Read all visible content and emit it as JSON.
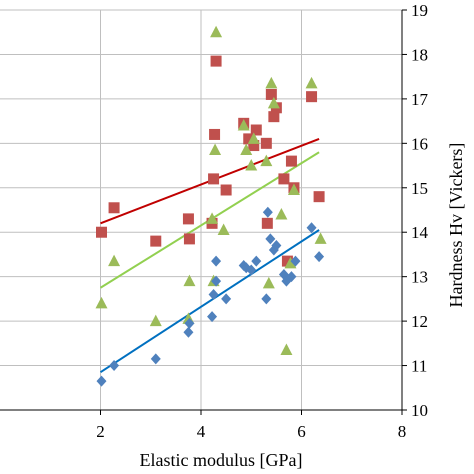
{
  "chart_data": {
    "type": "scatter",
    "xlabel": "Elastic modulus [GPa]",
    "ylabel": "Hardness Hv  [Vickers]",
    "xlim": [
      0,
      8
    ],
    "ylim": [
      10,
      19
    ],
    "x_ticks": [
      "2",
      "4",
      "6",
      "8"
    ],
    "y_ticks": [
      "10",
      "11",
      "12",
      "13",
      "14",
      "15",
      "16",
      "17",
      "18",
      "19"
    ],
    "y_axis_position": "right",
    "grid": true,
    "series": [
      {
        "marker": "square",
        "color": "#c0504d",
        "trend_color": "#c00000",
        "trend": [
          [
            2.0,
            14.2
          ],
          [
            6.35,
            16.1
          ]
        ],
        "points": [
          [
            2.02,
            14.0
          ],
          [
            2.27,
            14.55
          ],
          [
            3.1,
            13.8
          ],
          [
            3.75,
            14.3
          ],
          [
            3.77,
            13.85
          ],
          [
            4.22,
            14.2
          ],
          [
            4.25,
            15.2
          ],
          [
            4.27,
            16.2
          ],
          [
            4.3,
            17.85
          ],
          [
            4.5,
            14.95
          ],
          [
            4.85,
            16.45
          ],
          [
            4.95,
            16.1
          ],
          [
            5.05,
            15.95
          ],
          [
            5.1,
            16.3
          ],
          [
            5.3,
            16.0
          ],
          [
            5.32,
            14.2
          ],
          [
            5.4,
            17.1
          ],
          [
            5.45,
            16.6
          ],
          [
            5.5,
            16.8
          ],
          [
            5.65,
            15.2
          ],
          [
            5.72,
            13.35
          ],
          [
            5.8,
            15.6
          ],
          [
            5.85,
            15.0
          ],
          [
            6.2,
            17.05
          ],
          [
            6.35,
            14.8
          ]
        ]
      },
      {
        "marker": "triangle",
        "color": "#9bbb59",
        "trend_color": "#92d050",
        "trend": [
          [
            2.0,
            12.75
          ],
          [
            6.35,
            15.8
          ]
        ],
        "points": [
          [
            2.02,
            12.4
          ],
          [
            2.27,
            13.35
          ],
          [
            3.1,
            12.0
          ],
          [
            3.75,
            12.05
          ],
          [
            3.77,
            12.9
          ],
          [
            4.22,
            14.3
          ],
          [
            4.25,
            12.9
          ],
          [
            4.28,
            15.85
          ],
          [
            4.3,
            18.5
          ],
          [
            4.45,
            14.05
          ],
          [
            4.85,
            16.4
          ],
          [
            4.9,
            15.85
          ],
          [
            5.0,
            15.5
          ],
          [
            5.05,
            16.1
          ],
          [
            5.3,
            15.6
          ],
          [
            5.35,
            12.85
          ],
          [
            5.4,
            17.35
          ],
          [
            5.45,
            16.9
          ],
          [
            5.6,
            14.4
          ],
          [
            5.7,
            11.35
          ],
          [
            5.78,
            13.3
          ],
          [
            5.85,
            14.95
          ],
          [
            6.2,
            17.35
          ],
          [
            6.38,
            13.85
          ]
        ]
      },
      {
        "marker": "diamond",
        "color": "#4f81bd",
        "trend_color": "#0070c0",
        "trend": [
          [
            2.0,
            10.85
          ],
          [
            6.35,
            14.05
          ]
        ],
        "points": [
          [
            2.02,
            10.65
          ],
          [
            2.27,
            11.0
          ],
          [
            3.1,
            11.15
          ],
          [
            3.75,
            11.75
          ],
          [
            3.77,
            11.95
          ],
          [
            4.22,
            12.1
          ],
          [
            4.25,
            12.6
          ],
          [
            4.3,
            12.9
          ],
          [
            4.3,
            13.35
          ],
          [
            4.5,
            12.5
          ],
          [
            4.85,
            13.25
          ],
          [
            4.9,
            13.2
          ],
          [
            5.0,
            13.15
          ],
          [
            5.1,
            13.35
          ],
          [
            5.3,
            12.5
          ],
          [
            5.33,
            14.45
          ],
          [
            5.38,
            13.85
          ],
          [
            5.45,
            13.6
          ],
          [
            5.5,
            13.7
          ],
          [
            5.65,
            13.05
          ],
          [
            5.7,
            12.9
          ],
          [
            5.8,
            13.0
          ],
          [
            5.88,
            13.35
          ],
          [
            6.2,
            14.1
          ],
          [
            6.35,
            13.45
          ]
        ]
      }
    ]
  }
}
